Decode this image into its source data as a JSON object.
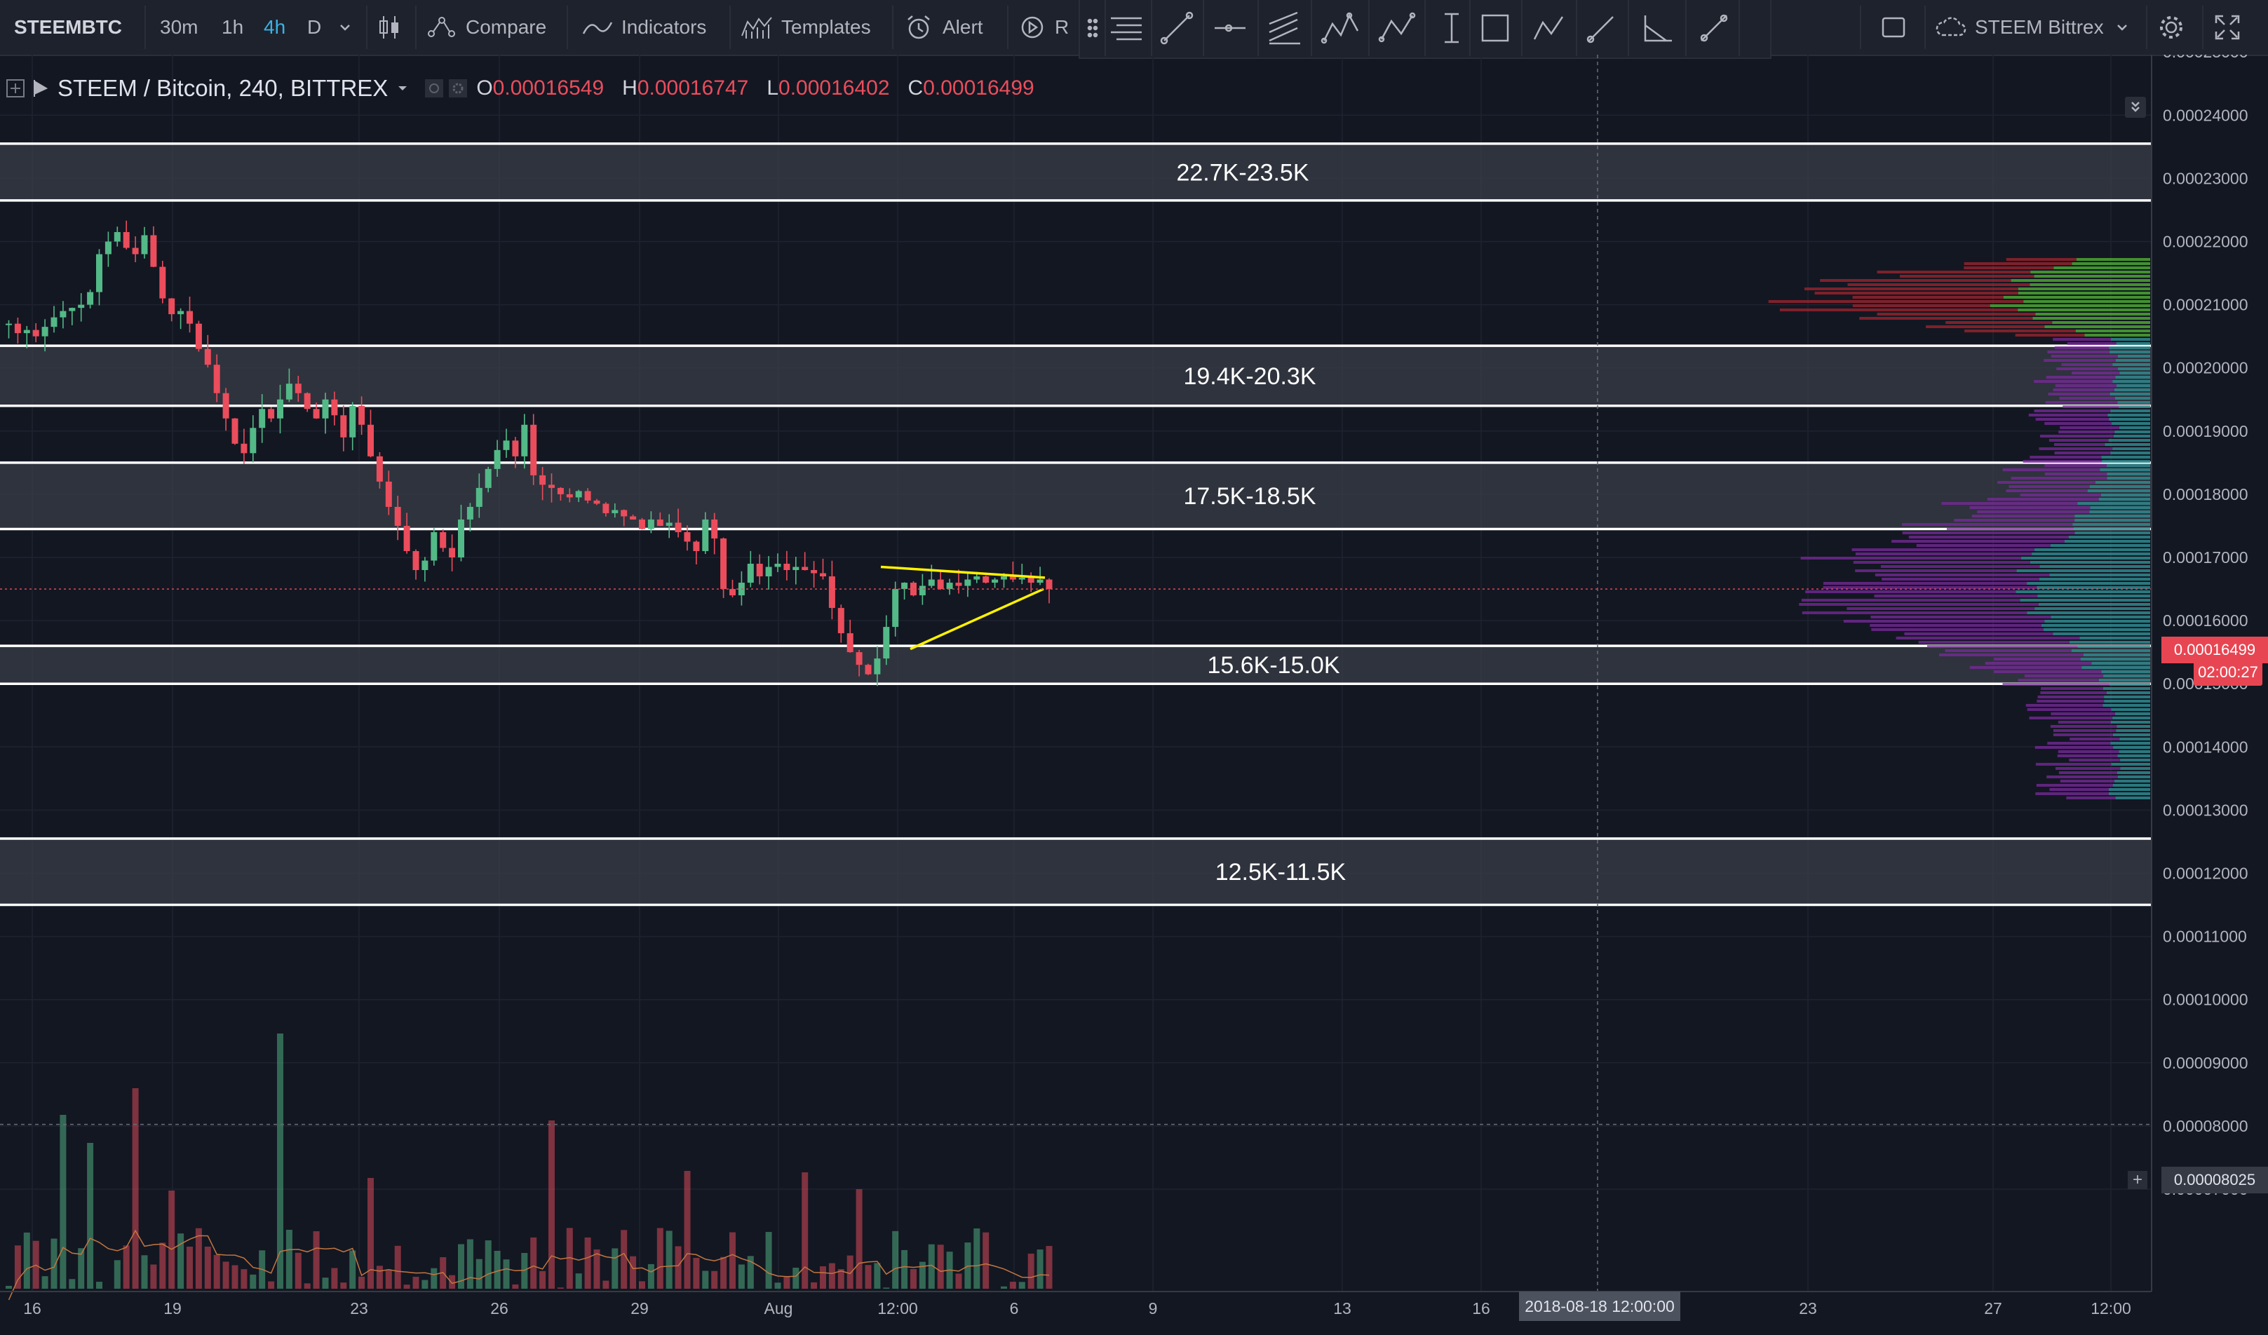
{
  "toolbar": {
    "symbol": "STEEMBTC",
    "intervals": [
      "30m",
      "1h",
      "4h",
      "D"
    ],
    "active_interval": "4h",
    "compare_label": "Compare",
    "indicators_label": "Indicators",
    "templates_label": "Templates",
    "alert_label": "Alert",
    "replay_label_partial": "R",
    "layout_name": "STEEM Bittrex"
  },
  "legend": {
    "title": "STEEM / Bitcoin, 240, BITTREX",
    "open_label": "O",
    "open": "0.00016549",
    "high_label": "H",
    "high": "0.00016747",
    "low_label": "L",
    "low": "0.00016402",
    "close_label": "C",
    "close": "0.00016499"
  },
  "price_axis": {
    "ticks": [
      "0.00025000",
      "0.00024000",
      "0.00023000",
      "0.00022000",
      "0.00021000",
      "0.00020000",
      "0.00019000",
      "0.00018000",
      "0.00017000",
      "0.00016000",
      "0.00015000",
      "0.00014000",
      "0.00013000",
      "0.00012000",
      "0.00011000",
      "0.00010000",
      "0.00009000",
      "0.00008000",
      "0.00007000"
    ],
    "last_price": "0.00016499",
    "countdown": "02:00:27",
    "crosshair_price": "0.00008025"
  },
  "time_axis": {
    "ticks": [
      "16",
      "19",
      "23",
      "26",
      "29",
      "Aug",
      "12:00",
      "6",
      "9",
      "13",
      "16",
      "23",
      "27",
      "12:00"
    ],
    "crosshair_date": "2018-08-18 12:00:00"
  },
  "zones": [
    {
      "label": "22.7K-23.5K",
      "top": 0.0002355,
      "bottom": 0.0002265
    },
    {
      "label": "19.4K-20.3K",
      "top": 0.0002035,
      "bottom": 0.000194
    },
    {
      "label": "17.5K-18.5K",
      "top": 0.000185,
      "bottom": 0.0001745
    },
    {
      "label": "15.6K-15.0K",
      "top": 0.000156,
      "bottom": 0.00015
    },
    {
      "label": "12.5K-11.5K",
      "top": 0.0001255,
      "bottom": 0.000115
    }
  ],
  "colors": {
    "background": "#131722",
    "up": "#53b987",
    "down": "#eb4d5c",
    "triangle": "#fff200",
    "zone_fill": "#3a3e47",
    "volume_ma": "#c4763f",
    "profile_green": "#4ca632",
    "profile_red": "#a3262f",
    "profile_purple": "#7b2a9e",
    "profile_teal": "#2f8a8e",
    "last_price_badge": "#e84552"
  },
  "chart_data": {
    "type": "candlestick",
    "symbol": "STEEM / Bitcoin",
    "interval": "240",
    "exchange": "BITTREX",
    "ylim": [
      6.5e-05,
      0.000255
    ],
    "close_series": [
      0.000207,
      0.0002055,
      0.000206,
      0.000205,
      0.0002065,
      0.000208,
      0.000209,
      0.0002095,
      0.00021,
      0.000212,
      0.000218,
      0.00022,
      0.0002215,
      0.000219,
      0.000218,
      0.000221,
      0.000216,
      0.000211,
      0.0002085,
      0.000209,
      0.000207,
      0.000203,
      0.0002005,
      0.000196,
      0.000192,
      0.000188,
      0.0001865,
      0.0001905,
      0.0001935,
      0.000192,
      0.000195,
      0.0001975,
      0.000196,
      0.0001935,
      0.000192,
      0.000195,
      0.0001925,
      0.000189,
      0.000194,
      0.000191,
      0.000186,
      0.000182,
      0.000178,
      0.000175,
      0.000171,
      0.000168,
      0.0001695,
      0.000174,
      0.0001715,
      0.00017,
      0.000176,
      0.000178,
      0.000181,
      0.000184,
      0.000187,
      0.0001885,
      0.000186,
      0.000191,
      0.000183,
      0.0001815,
      0.000181,
      0.00018,
      0.0001795,
      0.0001805,
      0.000179,
      0.0001785,
      0.000177,
      0.0001775,
      0.0001765,
      0.000176,
      0.0001745,
      0.000176,
      0.000175,
      0.0001755,
      0.000174,
      0.0001725,
      0.000171,
      0.000176,
      0.000173,
      0.000165,
      0.000164,
      0.000166,
      0.000169,
      0.000167,
      0.0001685,
      0.000169,
      0.000168,
      0.0001685,
      0.000168,
      0.0001675,
      0.000167,
      0.000162,
      0.000158,
      0.000155,
      0.000153,
      0.0001515,
      0.000154,
      0.000159,
      0.000165,
      0.000166,
      0.000164,
      0.0001655,
      0.0001665,
      0.000165,
      0.000166,
      0.0001655,
      0.0001665,
      0.000167,
      0.000166,
      0.0001665,
      0.000167,
      0.0001665,
      0.0001668,
      0.000166,
      0.0001665,
      0.000165
    ],
    "volume_peaks": [
      {
        "date": "18",
        "value": 0.000103
      },
      {
        "date": "24",
        "value": 0.000111
      },
      {
        "date": "30",
        "value": 0.0001
      },
      {
        "date": "Aug 3",
        "value": 9.25e-05
      },
      {
        "date": "Aug 4",
        "value": 8.9e-05
      }
    ]
  }
}
